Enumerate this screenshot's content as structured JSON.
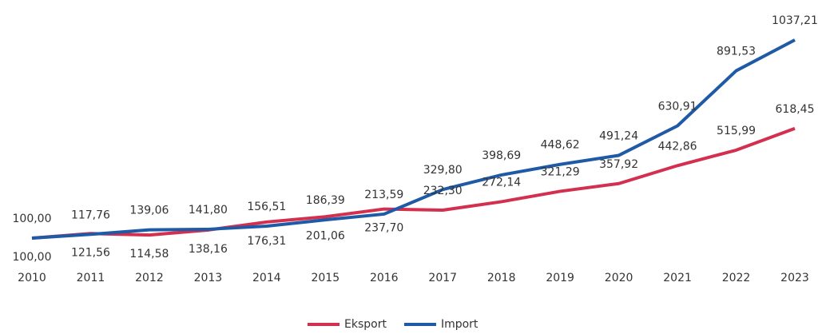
{
  "chart_data": {
    "type": "line",
    "categories": [
      "2010",
      "2011",
      "2012",
      "2013",
      "2014",
      "2015",
      "2016",
      "2017",
      "2018",
      "2019",
      "2020",
      "2021",
      "2022",
      "2023"
    ],
    "series": [
      {
        "name": "Eksport",
        "color": "#d32f4f",
        "values": [
          100.0,
          121.56,
          114.58,
          138.16,
          176.31,
          201.06,
          237.7,
          232.3,
          272.14,
          321.29,
          357.92,
          442.86,
          515.99,
          618.45
        ],
        "value_labels": [
          "100,00",
          "121,56",
          "114,58",
          "138,16",
          "176,31",
          "201,06",
          "237,70",
          "232,30",
          "272,14",
          "321,29",
          "357,92",
          "442,86",
          "515,99",
          "618,45"
        ]
      },
      {
        "name": "Import",
        "color": "#1f5aa6",
        "values": [
          100.0,
          117.76,
          139.06,
          141.8,
          156.51,
          186.39,
          213.59,
          329.8,
          398.69,
          448.62,
          491.24,
          630.91,
          891.53,
          1037.21
        ],
        "value_labels": [
          "100,00",
          "117,76",
          "139,06",
          "141,80",
          "156,51",
          "186,39",
          "213,59",
          "329,80",
          "398,69",
          "448,62",
          "491,24",
          "630,91",
          "891,53",
          "1037,21"
        ]
      }
    ]
  }
}
